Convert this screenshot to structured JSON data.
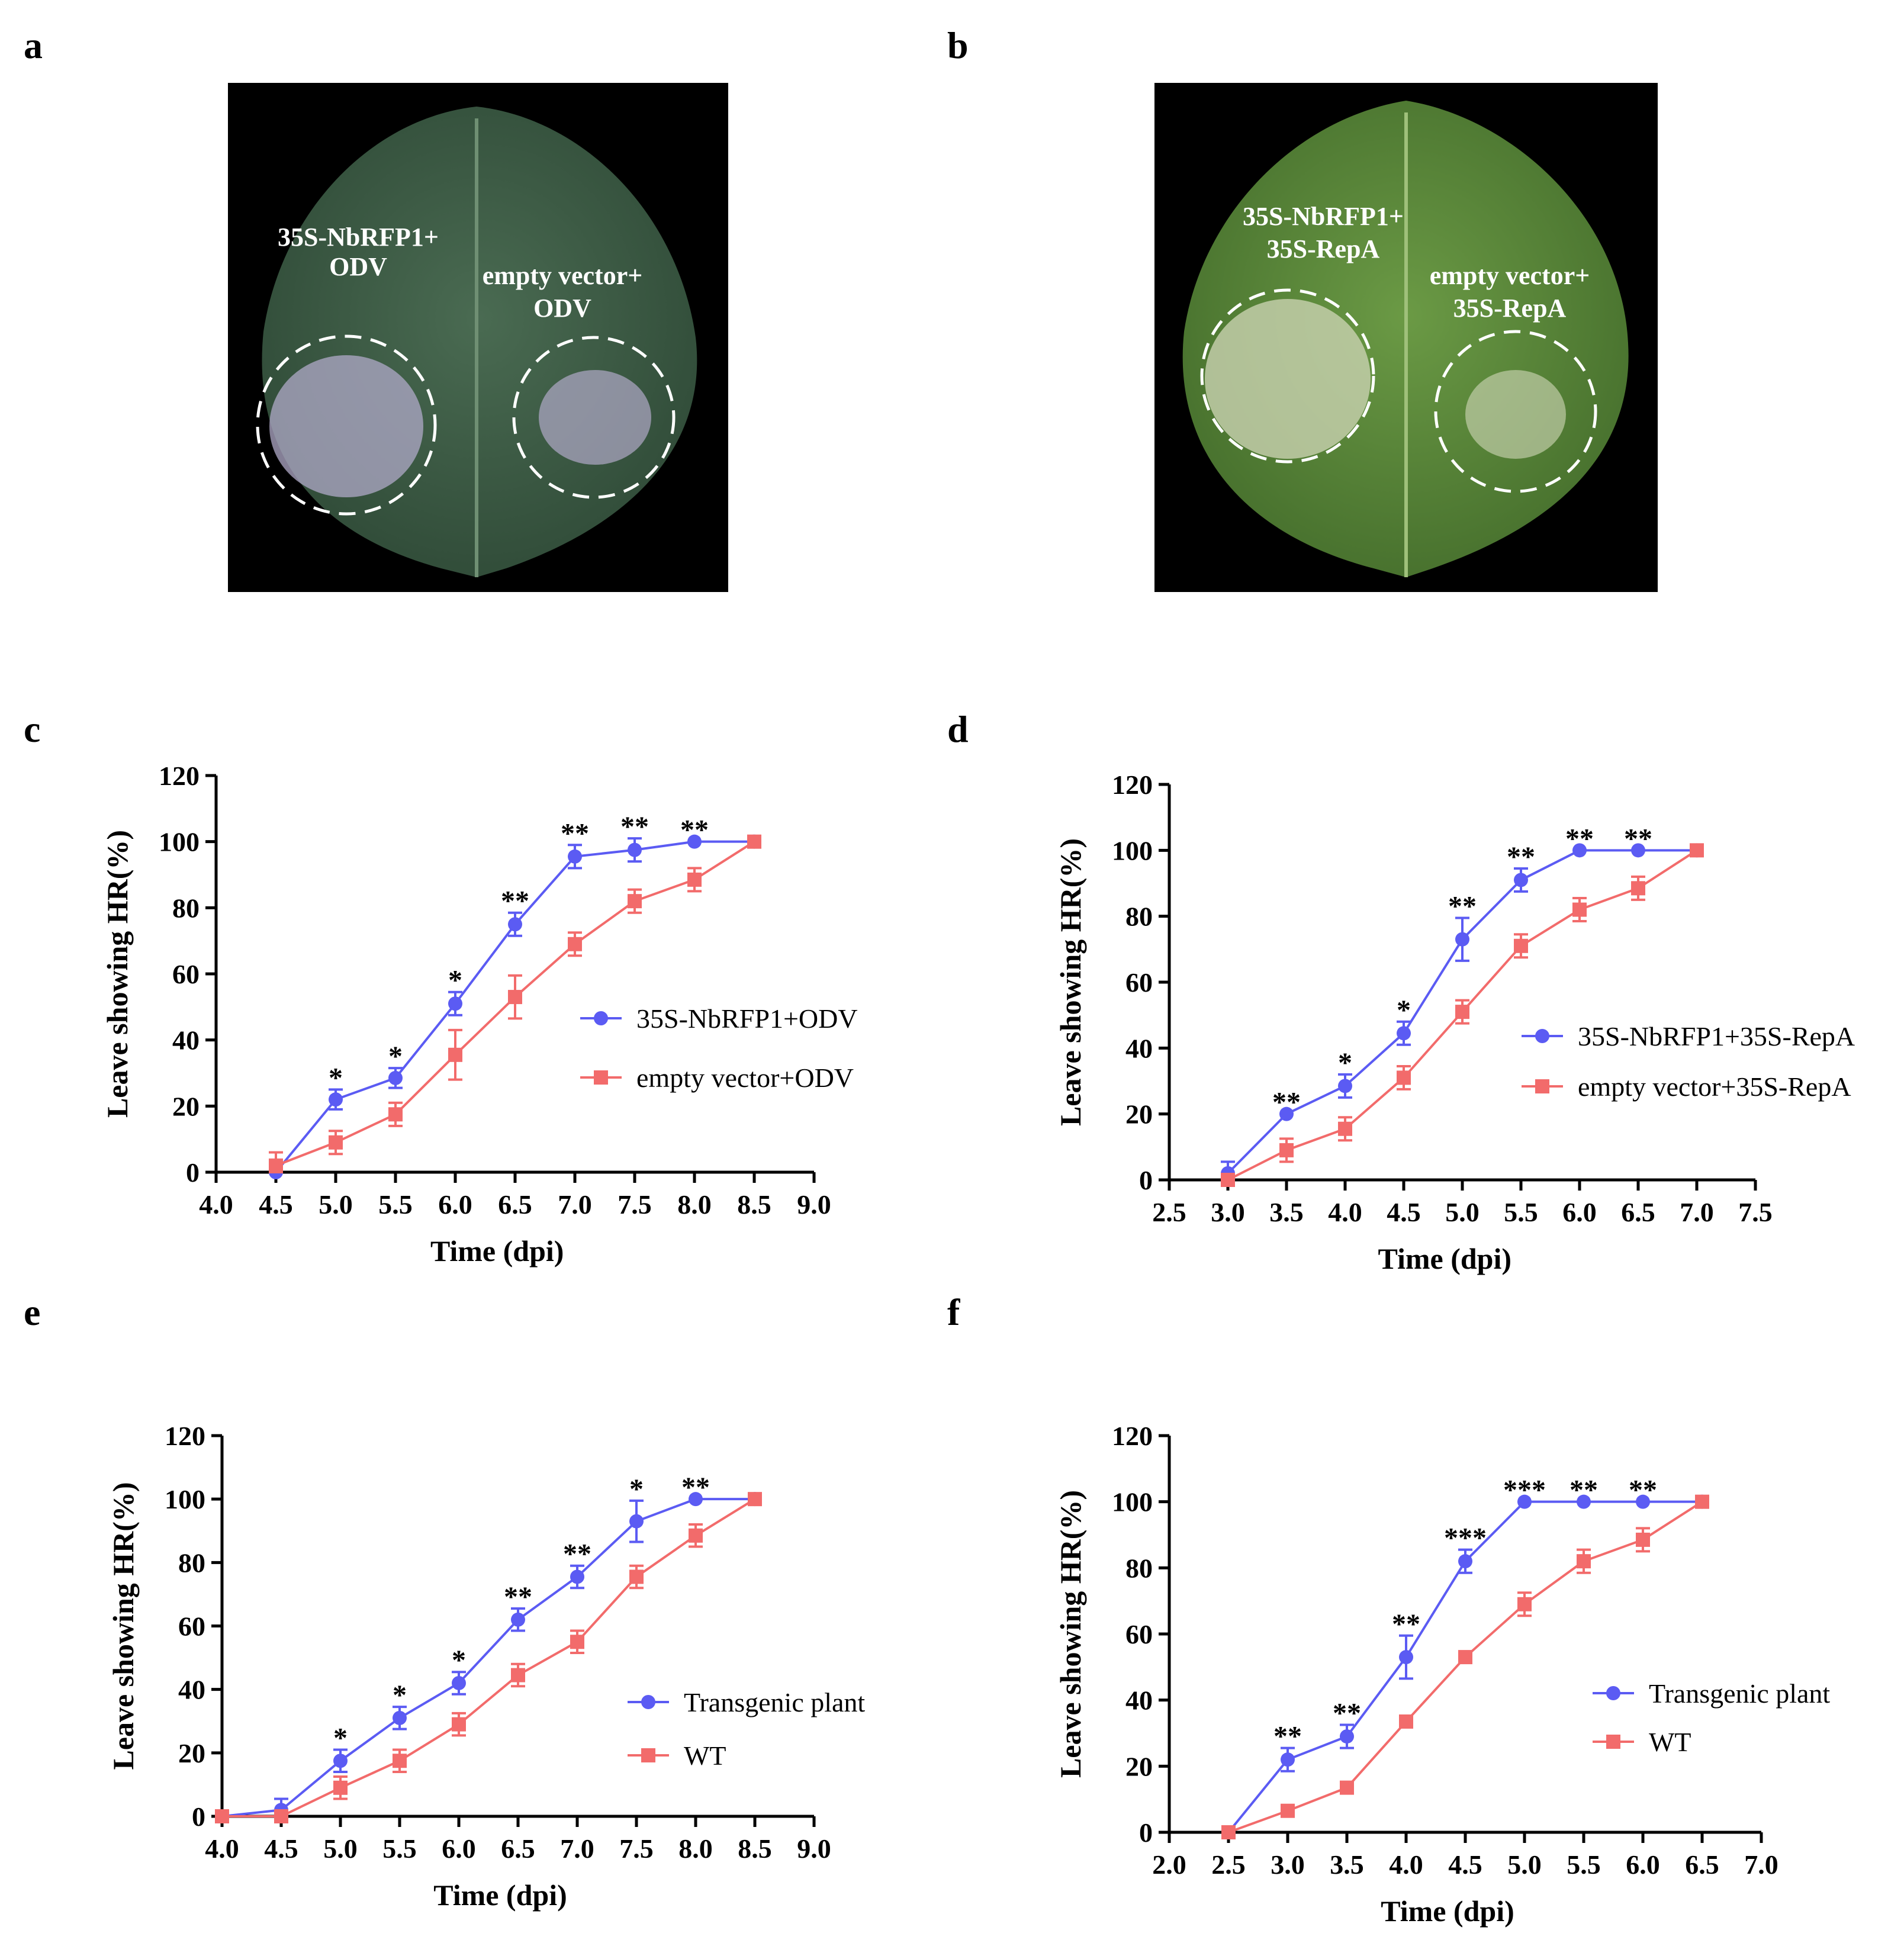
{
  "panels": {
    "a": {
      "letter": "a",
      "label_left_line1": "35S-NbRFP1+",
      "label_left_line2": "ODV",
      "label_right_line1": "empty  vector+",
      "label_right_line2": "ODV",
      "leaf_color": "#3f5f47",
      "lesion_color": "#b0a9c8"
    },
    "b": {
      "letter": "b",
      "label_left_line1": "35S-NbRFP1+",
      "label_left_line2": "35S-RepA",
      "label_right_line1": "empty vector+",
      "label_right_line2": "35S-RepA",
      "leaf_color": "#557f3a",
      "lesion_color": "#c9d2b0"
    },
    "c": {
      "letter": "c"
    },
    "d": {
      "letter": "d"
    },
    "e": {
      "letter": "e"
    },
    "f": {
      "letter": "f"
    }
  },
  "colors": {
    "blue": "#5b5bf3",
    "red": "#f26b6b"
  },
  "chart_data": [
    {
      "id": "c",
      "type": "line",
      "xlabel": "Time (dpi)",
      "ylabel": "Leave showing HR(%)",
      "xlim": [
        4.0,
        9.0
      ],
      "ylim": [
        0,
        120
      ],
      "xticks": [
        "4.0",
        "4.5",
        "5.0",
        "5.5",
        "6.0",
        "6.5",
        "7.0",
        "7.5",
        "8.0",
        "8.5",
        "9.0"
      ],
      "yticks": [
        "0",
        "20",
        "40",
        "60",
        "80",
        "100",
        "120"
      ],
      "legend_position": "center-right",
      "series": [
        {
          "name": "35S-NbRFP1+ODV",
          "marker": "circle",
          "color": "#5b5bf3",
          "x": [
            4.5,
            5.0,
            5.5,
            6.0,
            6.5,
            7.0,
            7.5,
            8.0,
            8.5
          ],
          "values": [
            0,
            22,
            28.5,
            51,
            75,
            95.5,
            97.5,
            100,
            100
          ],
          "err": [
            0,
            3,
            3,
            3.5,
            3.5,
            3.5,
            3.5,
            0,
            0
          ]
        },
        {
          "name": "empty vector+ODV",
          "marker": "square",
          "color": "#f26b6b",
          "x": [
            4.5,
            5.0,
            5.5,
            6.0,
            6.5,
            7.0,
            7.5,
            8.0,
            8.5
          ],
          "values": [
            2,
            9,
            17.5,
            35.5,
            53,
            69,
            82,
            88.5,
            100
          ],
          "err": [
            4,
            3.5,
            3.5,
            7.5,
            6.5,
            3.5,
            3.5,
            3.5,
            0
          ]
        }
      ],
      "annotations": [
        {
          "x": 5.0,
          "y": 22,
          "e": 3,
          "text": "*"
        },
        {
          "x": 5.5,
          "y": 28.5,
          "e": 3,
          "text": "*"
        },
        {
          "x": 6.0,
          "y": 51,
          "e": 3.5,
          "text": "*"
        },
        {
          "x": 6.5,
          "y": 75,
          "e": 3.5,
          "text": "**"
        },
        {
          "x": 7.0,
          "y": 95.5,
          "e": 3.5,
          "text": "**"
        },
        {
          "x": 7.5,
          "y": 97.5,
          "e": 3.5,
          "text": "**"
        },
        {
          "x": 8.0,
          "y": 100,
          "e": 0,
          "text": "**"
        }
      ]
    },
    {
      "id": "d",
      "type": "line",
      "xlabel": "Time (dpi)",
      "ylabel": "Leave showing HR(%)",
      "xlim": [
        2.5,
        7.5
      ],
      "ylim": [
        0,
        120
      ],
      "xticks": [
        "2.5",
        "3.0",
        "3.5",
        "4.0",
        "4.5",
        "5.0",
        "5.5",
        "6.0",
        "6.5",
        "7.0",
        "7.5"
      ],
      "yticks": [
        "0",
        "20",
        "40",
        "60",
        "80",
        "100",
        "120"
      ],
      "legend_position": "center-right",
      "series": [
        {
          "name": "35S-NbRFP1+35S-RepA",
          "marker": "circle",
          "color": "#5b5bf3",
          "x": [
            3.0,
            3.5,
            4.0,
            4.5,
            5.0,
            5.5,
            6.0,
            6.5,
            7.0
          ],
          "values": [
            2,
            20,
            28.5,
            44.5,
            73,
            91,
            100,
            100,
            100
          ],
          "err": [
            3.5,
            0,
            3.5,
            3.5,
            6.5,
            3.5,
            0,
            0,
            0
          ]
        },
        {
          "name": "empty vector+35S-RepA",
          "marker": "square",
          "color": "#f26b6b",
          "x": [
            3.0,
            3.5,
            4.0,
            4.5,
            5.0,
            5.5,
            6.0,
            6.5,
            7.0
          ],
          "values": [
            0,
            9,
            15.5,
            31,
            51,
            71,
            82,
            88.5,
            100
          ],
          "err": [
            0,
            3.5,
            3.5,
            3.5,
            3.5,
            3.5,
            3.5,
            3.5,
            0
          ]
        }
      ],
      "annotations": [
        {
          "x": 3.5,
          "y": 20,
          "e": 0,
          "text": "**"
        },
        {
          "x": 4.0,
          "y": 28.5,
          "e": 3.5,
          "text": "*"
        },
        {
          "x": 4.5,
          "y": 44.5,
          "e": 3.5,
          "text": "*"
        },
        {
          "x": 5.0,
          "y": 73,
          "e": 6.5,
          "text": "**"
        },
        {
          "x": 5.5,
          "y": 91,
          "e": 3.5,
          "text": "**"
        },
        {
          "x": 6.0,
          "y": 100,
          "e": 0,
          "text": "**"
        },
        {
          "x": 6.5,
          "y": 100,
          "e": 0,
          "text": "**"
        }
      ]
    },
    {
      "id": "e",
      "type": "line",
      "xlabel": "Time (dpi)",
      "ylabel": "Leave showing HR(%)",
      "xlim": [
        4.0,
        9.0
      ],
      "ylim": [
        0,
        120
      ],
      "xticks": [
        "4.0",
        "4.5",
        "5.0",
        "5.5",
        "6.0",
        "6.5",
        "7.0",
        "7.5",
        "8.0",
        "8.5",
        "9.0"
      ],
      "yticks": [
        "0",
        "20",
        "40",
        "60",
        "80",
        "100",
        "120"
      ],
      "legend_position": "bottom-right",
      "series": [
        {
          "name": "Transgenic plant",
          "marker": "circle",
          "color": "#5b5bf3",
          "x": [
            4.0,
            4.5,
            5.0,
            5.5,
            6.0,
            6.5,
            7.0,
            7.5,
            8.0,
            8.5
          ],
          "values": [
            0,
            2,
            17.5,
            31,
            42,
            62,
            75.5,
            93,
            100,
            100
          ],
          "err": [
            0,
            3.5,
            3.5,
            3.5,
            3.5,
            3.5,
            3.5,
            6.5,
            0,
            0
          ]
        },
        {
          "name": "WT",
          "marker": "square",
          "color": "#f26b6b",
          "x": [
            4.0,
            4.5,
            5.0,
            5.5,
            6.0,
            6.5,
            7.0,
            7.5,
            8.0,
            8.5
          ],
          "values": [
            0,
            0,
            9,
            17.5,
            29,
            44.5,
            55,
            75.5,
            88.5,
            100
          ],
          "err": [
            0,
            0,
            3.5,
            3.5,
            3.5,
            3.5,
            3.5,
            3.5,
            3.5,
            0
          ]
        }
      ],
      "annotations": [
        {
          "x": 5.0,
          "y": 17.5,
          "e": 3.5,
          "text": "*"
        },
        {
          "x": 5.5,
          "y": 31,
          "e": 3.5,
          "text": "*"
        },
        {
          "x": 6.0,
          "y": 42,
          "e": 3.5,
          "text": "*"
        },
        {
          "x": 6.5,
          "y": 62,
          "e": 3.5,
          "text": "**"
        },
        {
          "x": 7.0,
          "y": 75.5,
          "e": 3.5,
          "text": "**"
        },
        {
          "x": 7.5,
          "y": 93,
          "e": 6.5,
          "text": "*"
        },
        {
          "x": 8.0,
          "y": 100,
          "e": 0,
          "text": "**"
        }
      ]
    },
    {
      "id": "f",
      "type": "line",
      "xlabel": "Time (dpi)",
      "ylabel": "Leave showing HR(%)",
      "xlim": [
        2.0,
        7.0
      ],
      "ylim": [
        0,
        120
      ],
      "xticks": [
        "2.0",
        "2.5",
        "3.0",
        "3.5",
        "4.0",
        "4.5",
        "5.0",
        "5.5",
        "6.0",
        "6.5",
        "7.0"
      ],
      "yticks": [
        "0",
        "20",
        "40",
        "60",
        "80",
        "100",
        "120"
      ],
      "legend_position": "bottom-right",
      "series": [
        {
          "name": "Transgenic plant",
          "marker": "circle",
          "color": "#5b5bf3",
          "x": [
            2.5,
            3.0,
            3.5,
            4.0,
            4.5,
            5.0,
            5.5,
            6.0,
            6.5
          ],
          "values": [
            0,
            22,
            29,
            53,
            82,
            100,
            100,
            100,
            100
          ],
          "err": [
            0,
            3.5,
            3.5,
            6.5,
            3.5,
            0,
            0,
            0,
            0
          ]
        },
        {
          "name": "WT",
          "marker": "square",
          "color": "#f26b6b",
          "x": [
            2.5,
            3.0,
            3.5,
            4.0,
            4.5,
            5.0,
            5.5,
            6.0,
            6.5
          ],
          "values": [
            0,
            6.5,
            13.5,
            33.5,
            53,
            69,
            82,
            88.5,
            100
          ],
          "err": [
            0,
            0,
            0,
            0,
            0,
            3.5,
            3.5,
            3.5,
            0
          ]
        }
      ],
      "annotations": [
        {
          "x": 3.0,
          "y": 22,
          "e": 3.5,
          "text": "**"
        },
        {
          "x": 3.5,
          "y": 29,
          "e": 3.5,
          "text": "**"
        },
        {
          "x": 4.0,
          "y": 53,
          "e": 6.5,
          "text": "**"
        },
        {
          "x": 4.5,
          "y": 82,
          "e": 3.5,
          "text": "***"
        },
        {
          "x": 5.0,
          "y": 100,
          "e": 0,
          "text": "***"
        },
        {
          "x": 5.5,
          "y": 100,
          "e": 0,
          "text": "**"
        },
        {
          "x": 6.0,
          "y": 100,
          "e": 0,
          "text": "**"
        }
      ]
    }
  ]
}
